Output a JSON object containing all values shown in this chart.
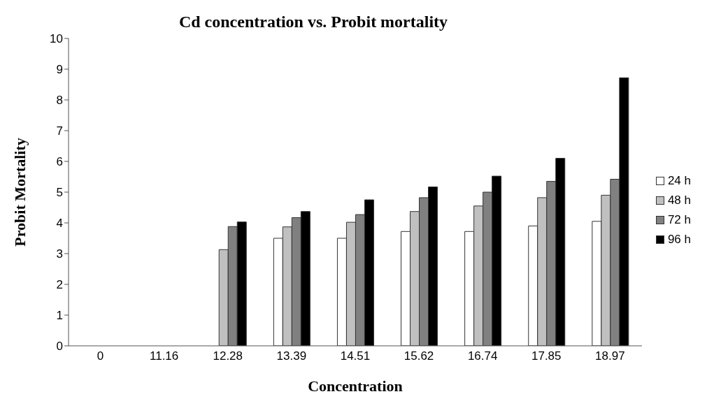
{
  "chart_data": {
    "type": "bar",
    "title": "Cd concentration vs. Probit mortality",
    "xlabel": "Concentration",
    "ylabel": "Probit Mortality",
    "categories": [
      "0",
      "11.16",
      "12.28",
      "13.39",
      "14.51",
      "15.62",
      "16.74",
      "17.85",
      "18.97"
    ],
    "series": [
      {
        "name": "24 h",
        "color": "#ffffff",
        "values": [
          0,
          0,
          0,
          3.5,
          3.5,
          3.72,
          3.72,
          3.9,
          4.05
        ]
      },
      {
        "name": "48 h",
        "color": "#c0c0c0",
        "values": [
          0,
          0,
          3.13,
          3.87,
          4.02,
          4.37,
          4.55,
          4.82,
          4.9
        ]
      },
      {
        "name": "72 h",
        "color": "#808080",
        "values": [
          0,
          0,
          3.88,
          4.17,
          4.27,
          4.82,
          5.0,
          5.35,
          5.42
        ]
      },
      {
        "name": "96 h",
        "color": "#000000",
        "values": [
          0,
          0,
          4.03,
          4.37,
          4.75,
          5.17,
          5.52,
          6.1,
          8.72
        ]
      }
    ],
    "ylim": [
      0,
      10
    ],
    "yticks": [
      0,
      1,
      2,
      3,
      4,
      5,
      6,
      7,
      8,
      9,
      10
    ],
    "grid": false,
    "legend": "right"
  }
}
